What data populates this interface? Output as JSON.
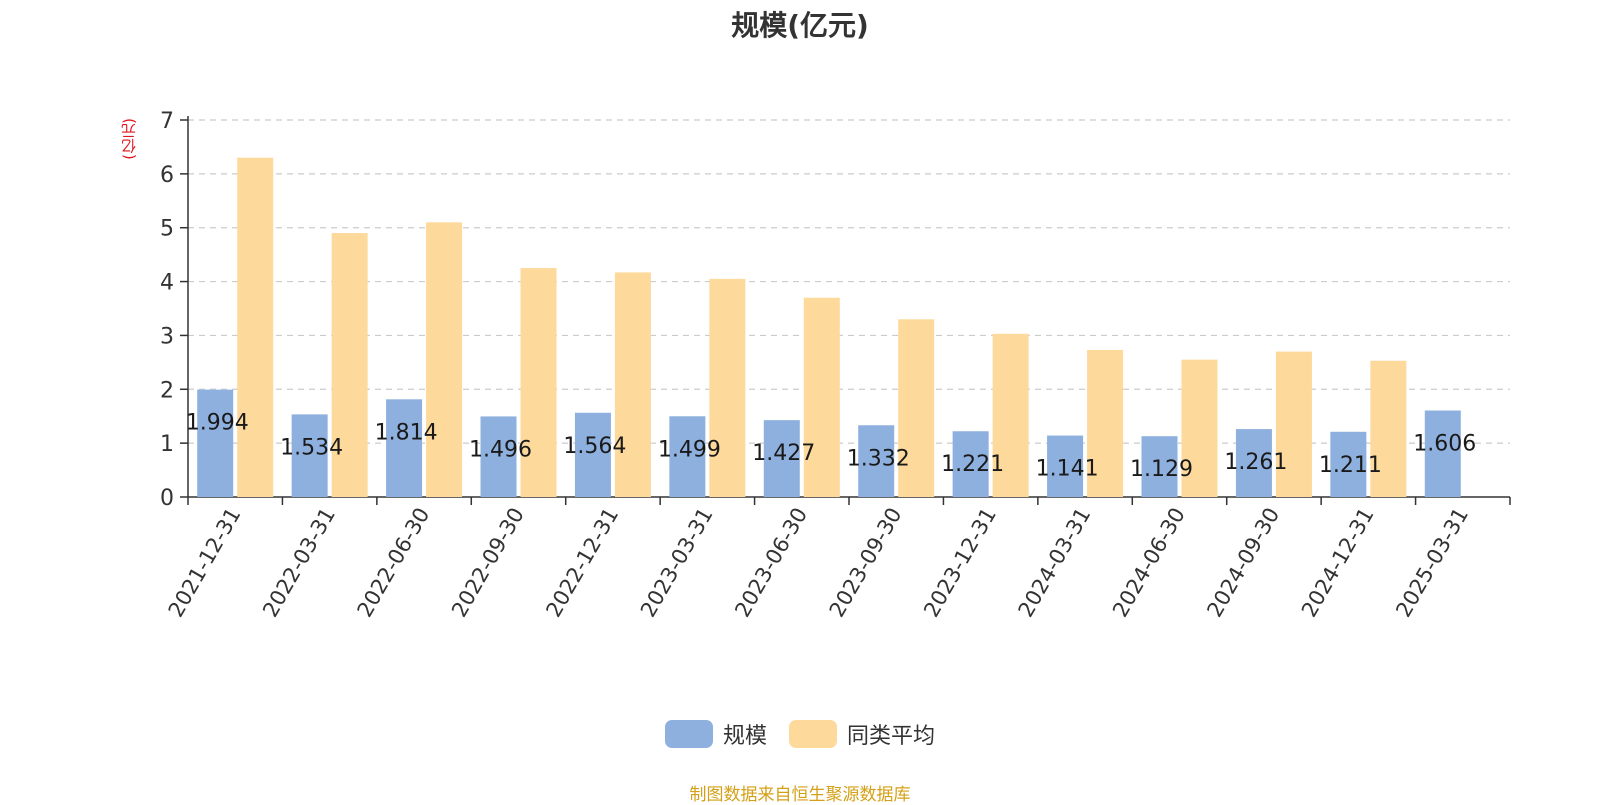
{
  "colors": {
    "series_1": "#8eb0de",
    "series_2": "#fdd99b",
    "unit_label": "#e0151b",
    "source_note": "#d4a017"
  },
  "chart_data": {
    "type": "bar",
    "title": "规模(亿元)",
    "unit_label": "(亿元)",
    "categories": [
      "2021-12-31",
      "2022-03-31",
      "2022-06-30",
      "2022-09-30",
      "2022-12-31",
      "2023-03-31",
      "2023-06-30",
      "2023-09-30",
      "2023-12-31",
      "2024-03-31",
      "2024-06-30",
      "2024-09-30",
      "2024-12-31",
      "2025-03-31"
    ],
    "series": [
      {
        "name": "规模",
        "values": [
          1.994,
          1.534,
          1.814,
          1.496,
          1.564,
          1.499,
          1.427,
          1.332,
          1.221,
          1.141,
          1.129,
          1.261,
          1.211,
          1.606
        ],
        "labels": [
          "1.994",
          "1.534",
          "1.814",
          "1.496",
          "1.564",
          "1.499",
          "1.427",
          "1.332",
          "1.221",
          "1.141",
          "1.129",
          "1.261",
          "1.211",
          "1.606"
        ]
      },
      {
        "name": "同类平均",
        "values": [
          6.3,
          4.9,
          5.1,
          4.25,
          4.17,
          4.05,
          3.7,
          3.3,
          3.03,
          2.73,
          2.55,
          2.7,
          2.53,
          null
        ]
      }
    ],
    "yticks": [
      "0",
      "1",
      "2",
      "3",
      "4",
      "5",
      "6",
      "7"
    ],
    "ylim": [
      0,
      7
    ],
    "grid": true,
    "legend_position": "bottom"
  },
  "footer": {
    "source": "制图数据来自恒生聚源数据库"
  }
}
